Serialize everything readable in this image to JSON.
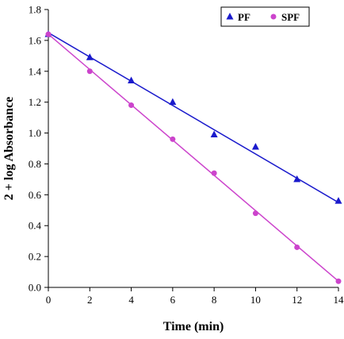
{
  "chart_data": {
    "type": "scatter",
    "title": "",
    "xlabel": "Time (min)",
    "ylabel": "2 + log Absorbance",
    "xlim": [
      0,
      14
    ],
    "ylim": [
      0,
      1.8
    ],
    "x_ticks": [
      "0",
      "2",
      "4",
      "6",
      "8",
      "10",
      "12",
      "14"
    ],
    "y_ticks": [
      "0.0",
      "0.2",
      "0.4",
      "0.6",
      "0.8",
      "1.0",
      "1.2",
      "1.4",
      "1.6",
      "1.8"
    ],
    "grid": false,
    "legend_position": "top-right",
    "series": [
      {
        "name": "PF",
        "marker": "triangle",
        "color": "#1a1acc",
        "x": [
          0,
          2,
          4,
          6,
          8,
          10,
          12,
          14
        ],
        "y": [
          1.64,
          1.49,
          1.34,
          1.2,
          0.99,
          0.91,
          0.7,
          0.56
        ],
        "trendline": [
          [
            0,
            1.65
          ],
          [
            14,
            0.55
          ]
        ]
      },
      {
        "name": "SPF",
        "marker": "circle",
        "color": "#cc44cc",
        "x": [
          0,
          2,
          4,
          6,
          8,
          10,
          12,
          14
        ],
        "y": [
          1.64,
          1.4,
          1.18,
          0.96,
          0.74,
          0.48,
          0.26,
          0.04
        ],
        "trendline": [
          [
            0,
            1.64
          ],
          [
            14,
            0.04
          ]
        ]
      }
    ]
  }
}
